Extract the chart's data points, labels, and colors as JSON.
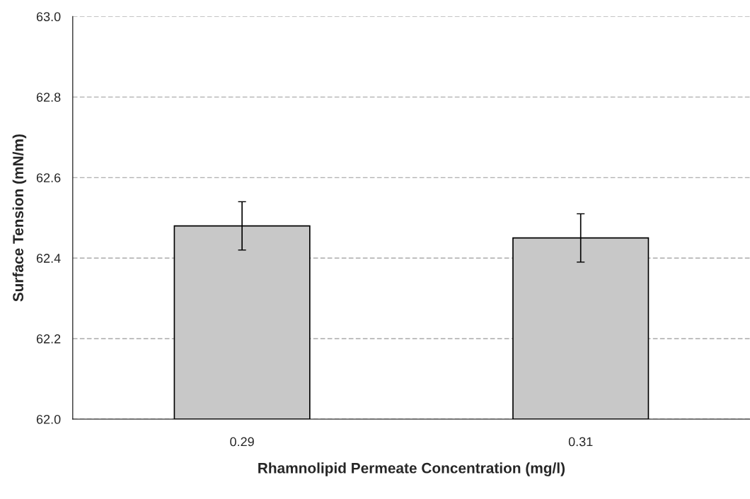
{
  "chart_data": {
    "type": "bar",
    "xlabel": "Rhamnolipid Permeate Concentration (mg/l)",
    "ylabel": "Surface Tension (mN/m)",
    "categories": [
      "0.29",
      "0.31"
    ],
    "values": [
      62.48,
      62.45
    ],
    "errors": [
      0.06,
      0.06
    ],
    "color": "#c8c8c8",
    "ylim": [
      62.0,
      63.0
    ],
    "yticks": [
      {
        "value": 62.0,
        "label": "62.0"
      },
      {
        "value": 62.2,
        "label": "62.2"
      },
      {
        "value": 62.4,
        "label": "62.4"
      },
      {
        "value": 62.6,
        "label": "62.6"
      },
      {
        "value": 62.8,
        "label": "62.8"
      },
      {
        "value": 63.0,
        "label": "63.0"
      }
    ],
    "grid": "y"
  }
}
